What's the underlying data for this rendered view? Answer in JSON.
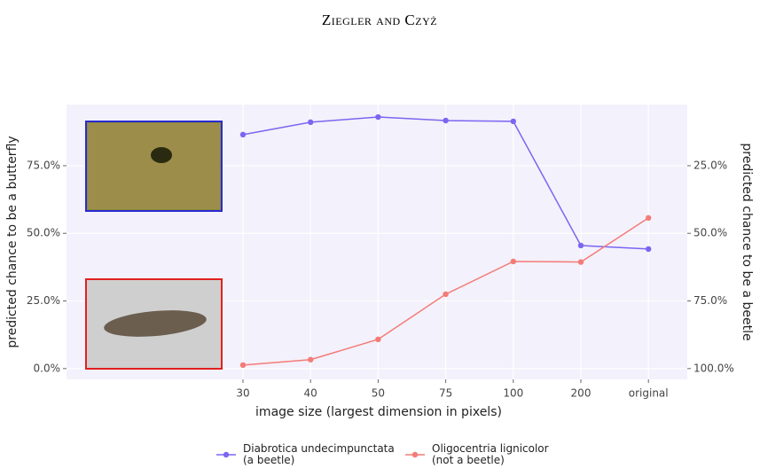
{
  "header": "Ziegler and Czyż",
  "chart_data": {
    "type": "line",
    "x_label": "image size (largest dimension in pixels)",
    "y_label": "predicted chance to be a butterfly",
    "y2_label": "predicted chance to be a beetle",
    "categories": [
      "30",
      "40",
      "50",
      "75",
      "100",
      "200",
      "original"
    ],
    "series": [
      {
        "name": "Diabrotica undecimpunctata\n(a beetle)",
        "color": "#7b66f2",
        "values": [
          86.5,
          91.1,
          93.0,
          91.7,
          91.4,
          45.5,
          44.2
        ]
      },
      {
        "name": "Oligocentria lignicolor\n(not a beetle)",
        "color": "#f47b77",
        "values": [
          1.3,
          3.3,
          10.8,
          27.5,
          39.6,
          39.4,
          55.7
        ]
      }
    ],
    "ylim": [
      -4,
      97.6
    ],
    "yticks": [
      {
        "value": 0,
        "label": "0.0%"
      },
      {
        "value": 25,
        "label": "25.0%"
      },
      {
        "value": 50,
        "label": "50.0%"
      },
      {
        "value": 75,
        "label": "75.0%"
      }
    ],
    "y2lim": [
      104,
      2.4
    ],
    "y2ticks": [
      {
        "value": 25,
        "label": "25.0%"
      },
      {
        "value": 50,
        "label": "50.0%"
      },
      {
        "value": 75,
        "label": "75.0%"
      },
      {
        "value": 100,
        "label": "100.0%"
      }
    ],
    "grid": true
  }
}
